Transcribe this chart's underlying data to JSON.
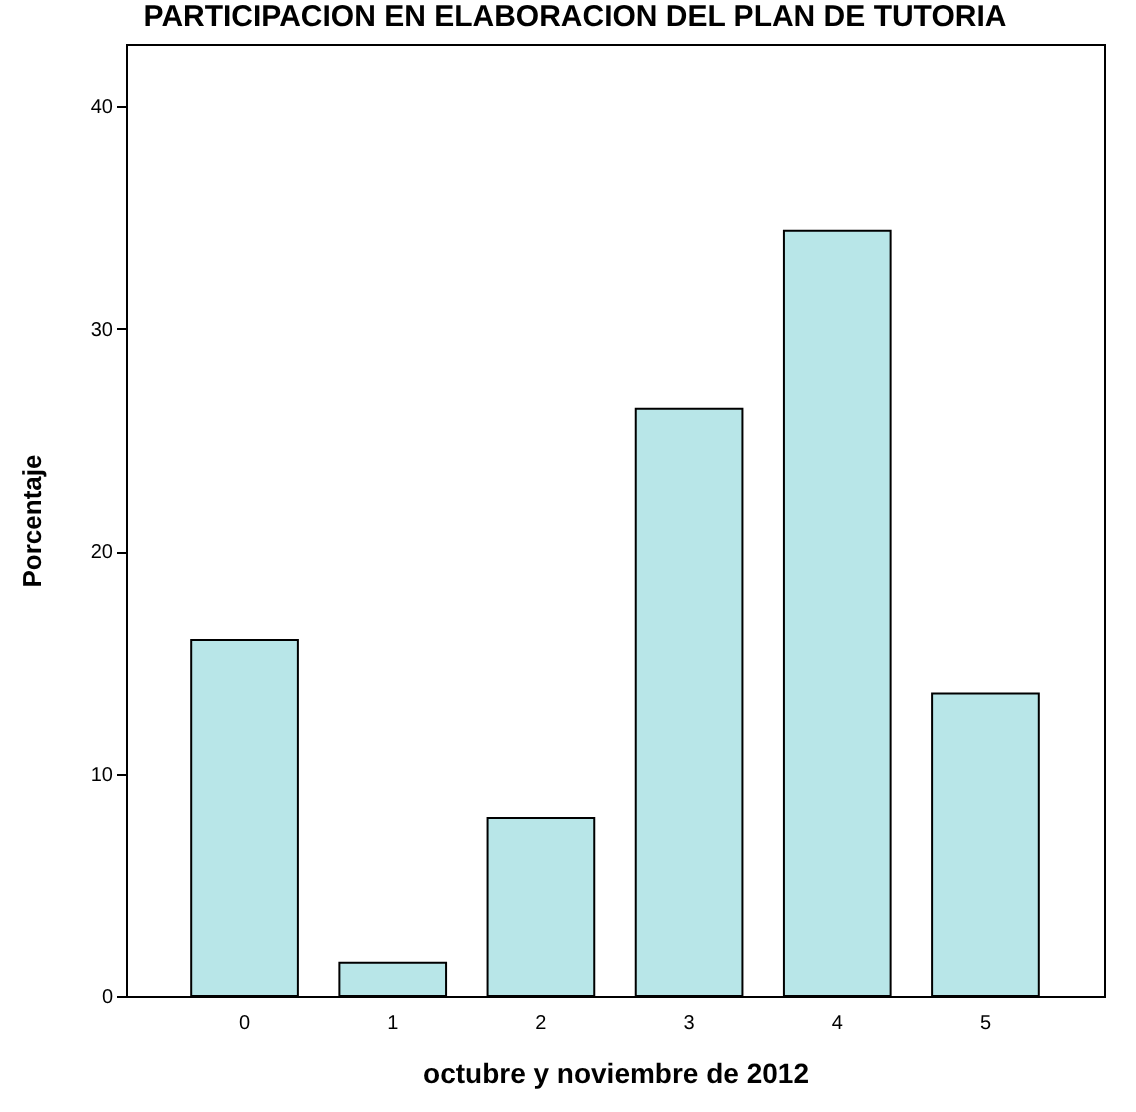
{
  "chart_data": {
    "type": "bar",
    "title": "PARTICIPACION EN ELABORACION DEL PLAN DE TUTORIA",
    "xlabel": "octubre y noviembre de 2012",
    "ylabel": "Porcentaje",
    "categories": [
      "0",
      "1",
      "2",
      "3",
      "4",
      "5"
    ],
    "values": [
      16,
      1.5,
      8,
      26.4,
      34.4,
      13.6
    ],
    "color": "#b8e6e8",
    "ylim": [
      0,
      42.8
    ],
    "yticks": [
      0,
      10,
      20,
      30,
      40
    ],
    "grid": false
  }
}
